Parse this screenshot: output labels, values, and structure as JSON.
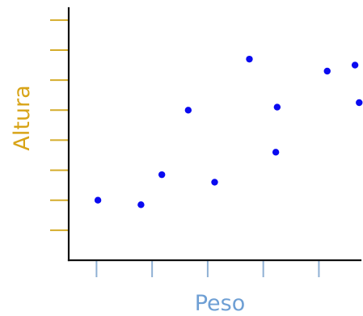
{
  "chart_data": {
    "type": "scatter",
    "xlabel": "Peso",
    "ylabel": "Altura",
    "xlim": [
      0,
      10.5
    ],
    "ylim": [
      0,
      8.4
    ],
    "x_ticks": [
      1,
      3,
      5,
      7,
      9
    ],
    "y_ticks": [
      1,
      2,
      3,
      4,
      5,
      6,
      7,
      8
    ],
    "x": [
      1.05,
      2.6,
      3.35,
      4.3,
      5.25,
      6.5,
      7.45,
      7.5,
      9.3,
      10.3,
      10.45
    ],
    "y": [
      2.0,
      1.85,
      2.85,
      5.0,
      2.6,
      6.7,
      3.6,
      5.1,
      6.3,
      6.5,
      5.25
    ],
    "colors": {
      "points": "#0a0af0",
      "x_ticks": "#8fb0d4",
      "y_ticks": "#d4ac2a",
      "xlabel": "#6e9fd4",
      "ylabel": "#d8a418",
      "axes": "#111111"
    }
  }
}
